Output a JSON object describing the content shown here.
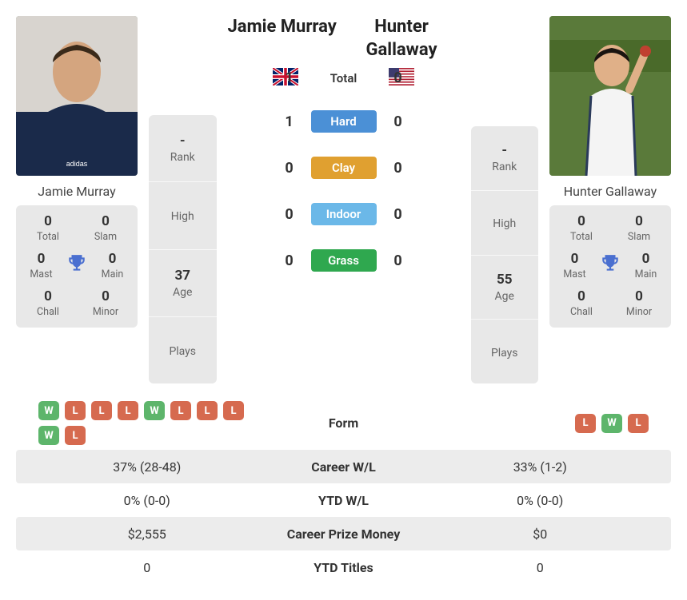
{
  "player1": {
    "name": "Jamie Murray",
    "flag": "gb",
    "rank": "-",
    "high": "",
    "age": "37",
    "plays": "",
    "titles": {
      "total": "0",
      "slam": "0",
      "mast": "0",
      "main": "0",
      "chall": "0",
      "minor": "0"
    }
  },
  "player2": {
    "name": "Hunter Gallaway",
    "flag": "us",
    "rank": "-",
    "high": "",
    "age": "55",
    "plays": "",
    "titles": {
      "total": "0",
      "slam": "0",
      "mast": "0",
      "main": "0",
      "chall": "0",
      "minor": "0"
    }
  },
  "labels": {
    "rank": "Rank",
    "high": "High",
    "age": "Age",
    "plays": "Plays",
    "total": "Total",
    "slam": "Slam",
    "mast": "Mast",
    "main": "Main",
    "chall": "Chall",
    "minor": "Minor"
  },
  "h2h": {
    "surfaces": {
      "total": "Total",
      "hard": "Hard",
      "clay": "Clay",
      "indoor": "Indoor",
      "grass": "Grass"
    },
    "scores": {
      "total": {
        "p1": "1",
        "p2": "0"
      },
      "hard": {
        "p1": "1",
        "p2": "0"
      },
      "clay": {
        "p1": "0",
        "p2": "0"
      },
      "indoor": {
        "p1": "0",
        "p2": "0"
      },
      "grass": {
        "p1": "0",
        "p2": "0"
      }
    }
  },
  "stats": {
    "labels": {
      "form": "Form",
      "career_wl": "Career W/L",
      "ytd_wl": "YTD W/L",
      "prize": "Career Prize Money",
      "ytd_titles": "YTD Titles"
    },
    "form": {
      "p1": [
        "W",
        "L",
        "L",
        "L",
        "W",
        "L",
        "L",
        "L",
        "W",
        "L"
      ],
      "p2": [
        "L",
        "W",
        "L"
      ]
    },
    "career_wl": {
      "p1": "37% (28-48)",
      "p2": "33% (1-2)"
    },
    "ytd_wl": {
      "p1": "0% (0-0)",
      "p2": "0% (0-0)"
    },
    "prize": {
      "p1": "$2,555",
      "p2": "$0"
    },
    "ytd_titles": {
      "p1": "0",
      "p2": "0"
    }
  },
  "colors": {
    "hard": "#4b90d6",
    "clay": "#e0a030",
    "indoor": "#6bb8e8",
    "grass": "#2fa84f",
    "win": "#5db56b",
    "loss": "#d66a4f",
    "trophy": "#4a6fd0",
    "panel": "#e8e8e8",
    "stripe": "#ececec"
  }
}
